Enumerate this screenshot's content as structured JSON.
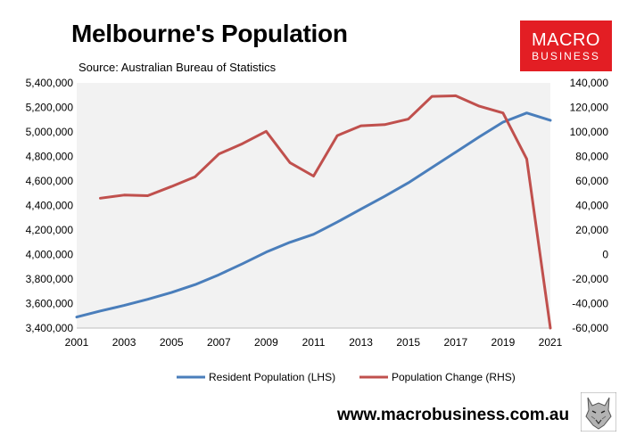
{
  "header": {
    "title": "Melbourne's Population",
    "source": "Source: Australian Bureau of Statistics"
  },
  "logo": {
    "line1": "MACRO",
    "line2": "BUSINESS",
    "color": "#e31e24"
  },
  "footer": {
    "website": "www.macrobusiness.com.au",
    "mascot": "wolf-icon"
  },
  "colors": {
    "lhs": "#4a7ebb",
    "rhs": "#c0504d",
    "plot_bg": "#f2f2f2"
  },
  "chart_data": {
    "type": "line",
    "title": "Melbourne's Population",
    "subtitle": "Source: Australian Bureau of Statistics",
    "x_tick_labels": [
      "2001",
      "2003",
      "2005",
      "2007",
      "2009",
      "2011",
      "2013",
      "2015",
      "2017",
      "2019",
      "2021"
    ],
    "xlim": [
      2001,
      2021
    ],
    "y_left": {
      "ylim": [
        3400000,
        5400000
      ],
      "ticks": [
        3400000,
        3600000,
        3800000,
        4000000,
        4200000,
        4400000,
        4600000,
        4800000,
        5000000,
        5200000,
        5400000
      ],
      "tick_labels": [
        "3,400,000",
        "3,600,000",
        "3,800,000",
        "4,000,000",
        "4,200,000",
        "4,400,000",
        "4,600,000",
        "4,800,000",
        "5,000,000",
        "5,200,000",
        "5,400,000"
      ]
    },
    "y_right": {
      "ylim": [
        -60000,
        140000
      ],
      "ticks": [
        -60000,
        -40000,
        -20000,
        0,
        20000,
        40000,
        60000,
        80000,
        100000,
        120000,
        140000
      ],
      "tick_labels": [
        "-60,000",
        "-40,000",
        "-20,000",
        "0",
        "20,000",
        "40,000",
        "60,000",
        "80,000",
        "100,000",
        "120,000",
        "140,000"
      ]
    },
    "legend_position": "bottom",
    "series": [
      {
        "name": "Resident Population (LHS)",
        "axis": "left",
        "x": [
          2001,
          2002,
          2003,
          2004,
          2005,
          2006,
          2007,
          2008,
          2009,
          2010,
          2011,
          2012,
          2013,
          2014,
          2015,
          2016,
          2017,
          2018,
          2019,
          2020,
          2021
        ],
        "values": [
          3490000,
          3540000,
          3585000,
          3635000,
          3690000,
          3755000,
          3835000,
          3925000,
          4020000,
          4100000,
          4165000,
          4265000,
          4370000,
          4475000,
          4585000,
          4710000,
          4835000,
          4960000,
          5080000,
          5155000,
          5095000
        ]
      },
      {
        "name": "Population Change (RHS)",
        "axis": "right",
        "x": [
          2002,
          2003,
          2004,
          2005,
          2006,
          2007,
          2008,
          2009,
          2010,
          2011,
          2012,
          2013,
          2014,
          2015,
          2016,
          2017,
          2018,
          2019,
          2020,
          2021
        ],
        "values": [
          46000,
          48500,
          48000,
          55500,
          63500,
          82000,
          90500,
          100500,
          75000,
          64000,
          97000,
          105000,
          106000,
          110500,
          129000,
          129500,
          121000,
          115500,
          78000,
          -60000
        ]
      }
    ]
  }
}
